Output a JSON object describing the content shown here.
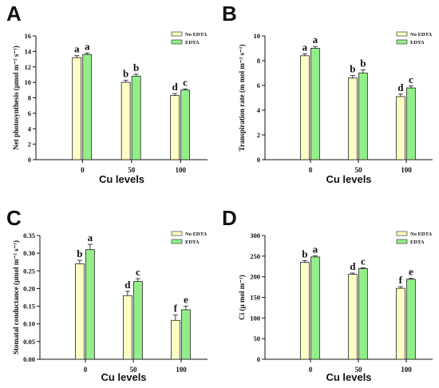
{
  "colors": {
    "no_edta": "#fdfdc6",
    "edta": "#93ee8a",
    "stroke": "#222222"
  },
  "chart_data": [
    {
      "panel": "A",
      "type": "bar",
      "categories": [
        "0",
        "50",
        "100"
      ],
      "xlabel": "Cu levels",
      "ylabel": "Net photosynthesis (µmol m⁻² s⁻¹)",
      "ylim": [
        0,
        16
      ],
      "yticks": [
        "0",
        "2",
        "4",
        "6",
        "8",
        "10",
        "12",
        "14",
        "16"
      ],
      "legend": "top-right",
      "series": [
        {
          "name": "No EDTA",
          "values": [
            13.2,
            10.0,
            8.3
          ],
          "errors": [
            0.25,
            0.25,
            0.25
          ],
          "letters": [
            "a",
            "b",
            "d"
          ]
        },
        {
          "name": "EDTA",
          "values": [
            13.6,
            10.8,
            9.0
          ],
          "errors": [
            0.2,
            0.25,
            0.15
          ],
          "letters": [
            "a",
            "b",
            "c"
          ]
        }
      ]
    },
    {
      "panel": "B",
      "type": "bar",
      "categories": [
        "0",
        "50",
        "100"
      ],
      "xlabel": "Cu levels",
      "ylabel": "Transpiration rate (m mol m⁻² s⁻¹)",
      "ylim": [
        0,
        10
      ],
      "yticks": [
        "0",
        "2",
        "4",
        "6",
        "8",
        "10"
      ],
      "legend": "top-right",
      "series": [
        {
          "name": "No EDTA",
          "values": [
            8.4,
            6.6,
            5.1
          ],
          "errors": [
            0.15,
            0.2,
            0.2
          ],
          "letters": [
            "a",
            "b",
            "d"
          ]
        },
        {
          "name": "EDTA",
          "values": [
            9.0,
            7.0,
            5.8
          ],
          "errors": [
            0.15,
            0.25,
            0.15
          ],
          "letters": [
            "a",
            "b",
            "c"
          ]
        }
      ]
    },
    {
      "panel": "C",
      "type": "bar",
      "categories": [
        "0",
        "50",
        "100"
      ],
      "xlabel": "Cu levels",
      "ylabel": "Stomatal conductance (µmol m⁻² s⁻¹)",
      "ylim": [
        0,
        0.35
      ],
      "yticks": [
        "0.00",
        "0.05",
        "0.10",
        "0.15",
        "0.20",
        "0.25",
        "0.30",
        "0.35"
      ],
      "legend": "top-right",
      "series": [
        {
          "name": "No EDTA",
          "values": [
            0.27,
            0.18,
            0.11
          ],
          "errors": [
            0.01,
            0.012,
            0.015
          ],
          "letters": [
            "b",
            "d",
            "f"
          ]
        },
        {
          "name": "EDTA",
          "values": [
            0.31,
            0.22,
            0.14
          ],
          "errors": [
            0.015,
            0.008,
            0.01
          ],
          "letters": [
            "a",
            "c",
            "e"
          ]
        }
      ]
    },
    {
      "panel": "D",
      "type": "bar",
      "categories": [
        "0",
        "50",
        "100"
      ],
      "xlabel": "Cu levels",
      "ylabel": "Ci (µ mol m⁻¹)",
      "ylim": [
        0,
        300
      ],
      "yticks": [
        "0",
        "50",
        "100",
        "150",
        "200",
        "250",
        "300"
      ],
      "legend": "top-right",
      "series": [
        {
          "name": "No EDTA",
          "values": [
            235,
            206,
            172
          ],
          "errors": [
            4,
            3,
            4
          ],
          "letters": [
            "b",
            "d",
            "f"
          ]
        },
        {
          "name": "EDTA",
          "values": [
            248,
            220,
            194
          ],
          "errors": [
            3,
            2,
            2
          ],
          "letters": [
            "a",
            "c",
            "e"
          ]
        }
      ]
    }
  ]
}
